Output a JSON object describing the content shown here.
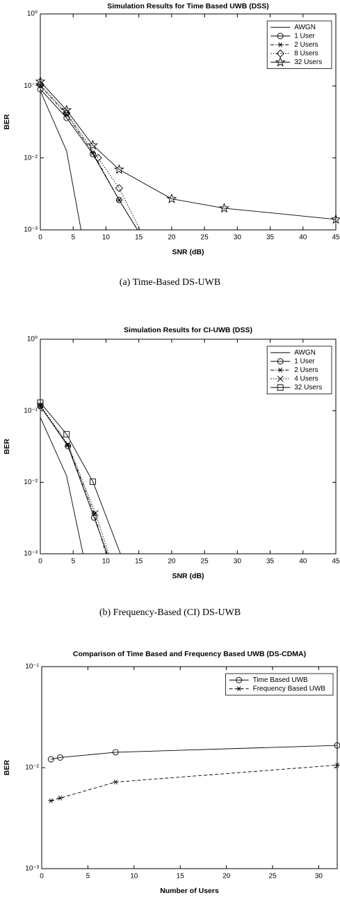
{
  "chart_data": [
    {
      "type": "line",
      "title": "Simulation Results for Time Based UWB (DSS)",
      "caption": "(a) Time-Based DS-UWB",
      "xlabel": "SNR (dB)",
      "ylabel": "BER",
      "log_y": true,
      "grid": false,
      "legend": "upper right",
      "xlim": [
        0,
        45
      ],
      "xticks": [
        0,
        5,
        10,
        15,
        20,
        25,
        30,
        35,
        40,
        45
      ],
      "ylim": [
        0.001,
        1
      ],
      "yticks": [
        {
          "value": 0.001,
          "label": "10⁻³"
        },
        {
          "value": 0.01,
          "label": "10⁻²"
        },
        {
          "value": 0.1,
          "label": "10⁻¹"
        },
        {
          "value": 1,
          "label": "10⁰"
        }
      ],
      "series": [
        {
          "name": "AWGN",
          "color": "#000000",
          "dash": "solid",
          "marker": "none",
          "x": [
            0,
            4,
            6.2
          ],
          "values": [
            0.085,
            0.0125,
            0.001
          ]
        },
        {
          "name": "1 User",
          "color": "#000000",
          "dash": "solid",
          "marker": "circle",
          "x": [
            0,
            4,
            8,
            12,
            14.8
          ],
          "values": [
            0.09,
            0.036,
            0.0113,
            0.0026,
            0.001
          ]
        },
        {
          "name": "2 Users",
          "color": "#000000",
          "dash": "dashdot",
          "marker": "asterisk",
          "x": [
            0,
            4,
            8,
            12,
            14.8
          ],
          "values": [
            0.1,
            0.04,
            0.0118,
            0.0026,
            0.001
          ]
        },
        {
          "name": "8 Users",
          "color": "#000000",
          "dash": "dotted",
          "marker": "diamond",
          "x": [
            0,
            4,
            8.8,
            12,
            15.2
          ],
          "values": [
            0.105,
            0.042,
            0.01,
            0.0038,
            0.001
          ]
        },
        {
          "name": "32 Users",
          "color": "#000000",
          "dash": "solid",
          "marker": "star",
          "x": [
            0,
            4,
            8,
            12,
            20,
            28,
            45
          ],
          "values": [
            0.115,
            0.046,
            0.015,
            0.0069,
            0.0027,
            0.002,
            0.0014
          ]
        }
      ]
    },
    {
      "type": "line",
      "title": "Simulation Results for CI-UWB (DSS)",
      "caption": "(b) Frequency-Based (CI) DS-UWB",
      "xlabel": "SNR (dB)",
      "ylabel": "BER",
      "log_y": true,
      "grid": false,
      "legend": "upper right",
      "xlim": [
        0,
        45
      ],
      "xticks": [
        0,
        5,
        10,
        15,
        20,
        25,
        30,
        35,
        40,
        45
      ],
      "ylim": [
        0.001,
        1
      ],
      "yticks": [
        {
          "value": 0.001,
          "label": "10⁻³"
        },
        {
          "value": 0.01,
          "label": "10⁻²"
        },
        {
          "value": 0.1,
          "label": "10⁻¹"
        },
        {
          "value": 1,
          "label": "10⁰"
        }
      ],
      "series": [
        {
          "name": "AWGN",
          "color": "#000000",
          "dash": "solid",
          "marker": "none",
          "x": [
            0,
            4,
            6.5
          ],
          "values": [
            0.081,
            0.0123,
            0.001
          ]
        },
        {
          "name": "1 User",
          "color": "#000000",
          "dash": "solid",
          "marker": "circle",
          "x": [
            0,
            4.2,
            8.2,
            10.2
          ],
          "values": [
            0.116,
            0.032,
            0.0032,
            0.001
          ]
        },
        {
          "name": "2 Users",
          "color": "#000000",
          "dash": "dashdot",
          "marker": "asterisk",
          "x": [
            0,
            4.2,
            8.2,
            10
          ],
          "values": [
            0.115,
            0.033,
            0.0036,
            0.001
          ]
        },
        {
          "name": "4 Users",
          "color": "#000000",
          "dash": "dotted",
          "marker": "x",
          "x": [
            0,
            4.2,
            8.4,
            10.4
          ],
          "values": [
            0.12,
            0.034,
            0.0037,
            0.001
          ]
        },
        {
          "name": "32 Users",
          "color": "#000000",
          "dash": "solid",
          "marker": "square",
          "x": [
            0,
            4,
            8,
            12.2
          ],
          "values": [
            0.13,
            0.047,
            0.0102,
            0.001
          ]
        }
      ]
    },
    {
      "type": "line",
      "title": "Comparison of Time Based and Frequency Based UWB (DS-CDMA)",
      "xlabel": "Number of Users",
      "ylabel": "BER",
      "log_y": true,
      "grid": false,
      "legend": "upper right",
      "xlim": [
        0,
        32
      ],
      "xticks": [
        0,
        5,
        10,
        15,
        20,
        25,
        30
      ],
      "ylim": [
        0.001,
        0.1
      ],
      "yticks": [
        {
          "value": 0.001,
          "label": "10⁻³"
        },
        {
          "value": 0.01,
          "label": "10⁻²"
        },
        {
          "value": 0.1,
          "label": "10⁻¹"
        }
      ],
      "series": [
        {
          "name": "Time Based UWB",
          "color": "#000000",
          "dash": "solid",
          "marker": "circle",
          "x": [
            1,
            2,
            8,
            32
          ],
          "values": [
            0.0121,
            0.0126,
            0.0142,
            0.0166
          ]
        },
        {
          "name": "Frequency Based UWB",
          "color": "#000000",
          "dash": "dashed",
          "marker": "asterisk",
          "x": [
            1,
            2,
            8,
            32
          ],
          "values": [
            0.0047,
            0.005,
            0.0072,
            0.0106
          ]
        }
      ]
    }
  ]
}
